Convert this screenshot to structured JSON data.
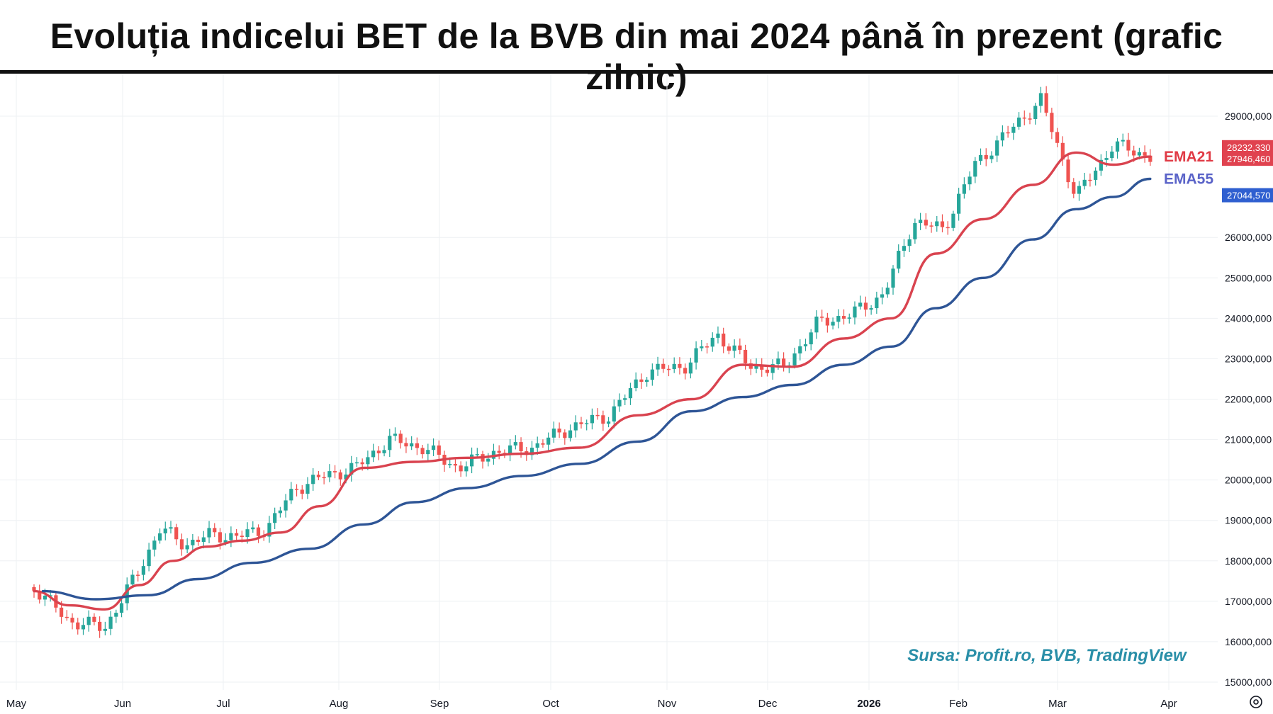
{
  "title": "Evoluția indicelui BET de la BVB din mai 2024 până în prezent (grafic zilnic)",
  "source_label": "Sursa: Profit.ro, BVB, TradingView",
  "colors": {
    "up": "#26a69a",
    "down": "#ef5350",
    "ema21": "#d9434f",
    "ema55": "#2e5596",
    "ema21_label": "#e03a45",
    "ema55_label": "#5a63c8",
    "source": "#2a8fa8",
    "grid": "#eef0f3"
  },
  "icons": {
    "settings": "settings-gear-icon"
  },
  "chart_data": {
    "type": "line",
    "subtype": "candlestick-with-ema",
    "title": "Evoluția indicelui BET de la BVB din mai 2024 până în prezent (grafic zilnic)",
    "xlabel": "",
    "ylabel": "",
    "ylim": [
      14900,
      29700
    ],
    "grid": true,
    "x_tick_labels": [
      "May",
      "Jun",
      "Jul",
      "Aug",
      "Sep",
      "Oct",
      "Nov",
      "Dec",
      "2026",
      "Feb",
      "Mar",
      "Apr"
    ],
    "bold_x_ticks": [
      "2026"
    ],
    "y_ticks": [
      15000,
      16000,
      17000,
      18000,
      19000,
      20000,
      21000,
      22000,
      23000,
      24000,
      25000,
      26000,
      29000
    ],
    "y_tick_labels": [
      "15000,000",
      "16000,000",
      "17000,000",
      "18000,000",
      "19000,000",
      "20000,000",
      "21000,000",
      "22000,000",
      "23000,000",
      "24000,000",
      "25000,000",
      "26000,000",
      "29000,000"
    ],
    "price_labels": [
      {
        "text": "28232,330",
        "value": 28232.33,
        "color": "#e0424f"
      },
      {
        "text": "27946,460",
        "value": 27946.46,
        "color": "#e0424f"
      },
      {
        "text": "27044,570",
        "value": 27044.57,
        "color": "#2f5fd0"
      }
    ],
    "series_labels": [
      "EMA21",
      "EMA55"
    ],
    "close_trajectory": [
      [
        "May",
        17350
      ],
      [
        "May",
        16500
      ],
      [
        "May",
        16350
      ],
      [
        "Jun",
        17600
      ],
      [
        "Jun",
        18800
      ],
      [
        "Jun",
        18400
      ],
      [
        "Jun",
        18650
      ],
      [
        "Jul",
        18600
      ],
      [
        "Jul",
        18800
      ],
      [
        "Jul",
        19800
      ],
      [
        "Jul",
        20100
      ],
      [
        "Aug",
        20300
      ],
      [
        "Aug",
        21000
      ],
      [
        "Aug",
        20800
      ],
      [
        "Sep",
        20300
      ],
      [
        "Sep",
        20700
      ],
      [
        "Sep",
        20800
      ],
      [
        "Oct",
        21300
      ],
      [
        "Oct",
        21600
      ],
      [
        "Oct",
        22700
      ],
      [
        "Nov",
        22800
      ],
      [
        "Nov",
        23600
      ],
      [
        "Nov",
        22800
      ],
      [
        "Dec",
        22800
      ],
      [
        "Dec",
        23900
      ],
      [
        "Dec",
        24100
      ],
      [
        "2026",
        24600
      ],
      [
        "2026",
        26400
      ],
      [
        "2026",
        26200
      ],
      [
        "Feb",
        27800
      ],
      [
        "Feb",
        28600
      ],
      [
        "Feb",
        29400
      ],
      [
        "Mar",
        27000
      ],
      [
        "Mar",
        28300
      ],
      [
        "Mar",
        28000
      ]
    ],
    "series": [
      {
        "name": "EMA21",
        "points": [
          [
            "May",
            17250
          ],
          [
            "May",
            16900
          ],
          [
            "May",
            16800
          ],
          [
            "Jun",
            17400
          ],
          [
            "Jun",
            18000
          ],
          [
            "Jun",
            18350
          ],
          [
            "Jul",
            18500
          ],
          [
            "Jul",
            18700
          ],
          [
            "Jul",
            19350
          ],
          [
            "Aug",
            20300
          ],
          [
            "Aug",
            20450
          ],
          [
            "Sep",
            20550
          ],
          [
            "Sep",
            20650
          ],
          [
            "Oct",
            20800
          ],
          [
            "Oct",
            21600
          ],
          [
            "Nov",
            22000
          ],
          [
            "Nov",
            22850
          ],
          [
            "Dec",
            22800
          ],
          [
            "Dec",
            23500
          ],
          [
            "2026",
            24000
          ],
          [
            "2026",
            25600
          ],
          [
            "Feb",
            26450
          ],
          [
            "Feb",
            27300
          ],
          [
            "Mar",
            28100
          ],
          [
            "Mar",
            27800
          ],
          [
            "Mar",
            28000
          ]
        ]
      },
      {
        "name": "EMA55",
        "points": [
          [
            "May",
            17250
          ],
          [
            "May",
            17050
          ],
          [
            "Jun",
            17150
          ],
          [
            "Jun",
            17550
          ],
          [
            "Jul",
            17950
          ],
          [
            "Jul",
            18300
          ],
          [
            "Aug",
            18900
          ],
          [
            "Aug",
            19450
          ],
          [
            "Sep",
            19800
          ],
          [
            "Sep",
            20100
          ],
          [
            "Oct",
            20400
          ],
          [
            "Oct",
            20950
          ],
          [
            "Nov",
            21700
          ],
          [
            "Nov",
            22050
          ],
          [
            "Dec",
            22350
          ],
          [
            "Dec",
            22850
          ],
          [
            "2026",
            23300
          ],
          [
            "2026",
            24250
          ],
          [
            "Feb",
            25000
          ],
          [
            "Feb",
            25950
          ],
          [
            "Mar",
            26700
          ],
          [
            "Mar",
            27000
          ],
          [
            "Mar",
            27450
          ]
        ]
      }
    ]
  }
}
